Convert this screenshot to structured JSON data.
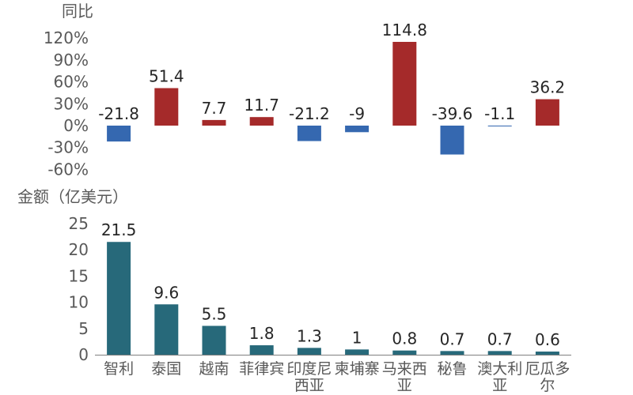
{
  "chart_data": [
    {
      "type": "bar",
      "ylabel": "同比",
      "categories": [
        "智利",
        "泰国",
        "越南",
        "菲律宾",
        "印度尼西亚",
        "柬埔寨",
        "马来西亚",
        "秘鲁",
        "澳大利亚",
        "厄瓜多尔"
      ],
      "values": [
        -21.8,
        51.4,
        7.7,
        11.7,
        -21.2,
        -9,
        114.8,
        -39.6,
        -1.1,
        36.2
      ],
      "value_labels": [
        "-21.8",
        "51.4",
        "7.7",
        "11.7",
        "-21.2",
        "-9",
        "114.8",
        "-39.6",
        "-1.1",
        "36.2"
      ],
      "yticks": [
        -60,
        -30,
        0,
        30,
        60,
        90,
        120
      ],
      "ytick_labels": [
        "-60%",
        "-30%",
        "0%",
        "30%",
        "60%",
        "90%",
        "120%"
      ],
      "ylim": [
        -60,
        120
      ],
      "grid": false,
      "colors": {
        "positive": "#A52A2A",
        "negative": "#3568B0"
      }
    },
    {
      "type": "bar",
      "ylabel": "金额（亿美元）",
      "categories": [
        "智利",
        "泰国",
        "越南",
        "菲律宾",
        "印度尼西亚",
        "柬埔寨",
        "马来西亚",
        "秘鲁",
        "澳大利亚",
        "厄瓜多尔"
      ],
      "category_lines": [
        [
          "智利"
        ],
        [
          "泰国"
        ],
        [
          "越南"
        ],
        [
          "菲律宾"
        ],
        [
          "印度尼",
          "西亚"
        ],
        [
          "柬埔寨"
        ],
        [
          "马来西",
          "亚"
        ],
        [
          "秘鲁"
        ],
        [
          "澳大利",
          "亚"
        ],
        [
          "厄瓜多",
          "尔"
        ]
      ],
      "values": [
        21.5,
        9.6,
        5.5,
        1.8,
        1.3,
        1,
        0.8,
        0.7,
        0.7,
        0.6
      ],
      "value_labels": [
        "21.5",
        "9.6",
        "5.5",
        "1.8",
        "1.3",
        "1",
        "0.8",
        "0.7",
        "0.7",
        "0.6"
      ],
      "yticks": [
        0,
        5,
        10,
        15,
        20,
        25
      ],
      "ytick_labels": [
        "0",
        "5",
        "10",
        "15",
        "20",
        "25"
      ],
      "ylim": [
        0,
        25
      ],
      "grid": false,
      "colors": {
        "bar": "#27697A",
        "axis": "#7F7F7F"
      }
    }
  ]
}
